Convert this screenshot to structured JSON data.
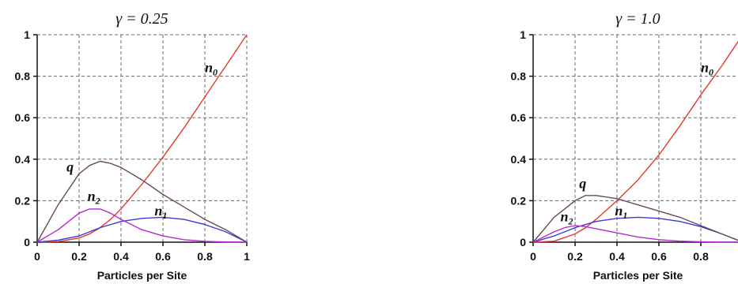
{
  "chart_data": [
    {
      "type": "line",
      "title": "γ = 0.25",
      "xlabel": "Particles per Site",
      "ylabel": "",
      "xlim": [
        0,
        1
      ],
      "ylim": [
        0,
        1
      ],
      "x_ticks": [
        "0",
        "0.2",
        "0.4",
        "0.6",
        "0.8",
        "1"
      ],
      "y_ticks": [
        "0",
        "0.2",
        "0.4",
        "0.6",
        "0.8",
        "1"
      ],
      "grid": true,
      "series": [
        {
          "name": "n0",
          "color": "#e23b2e",
          "x": [
            0,
            0.1,
            0.2,
            0.25,
            0.3,
            0.35,
            0.4,
            0.5,
            0.6,
            0.7,
            0.8,
            0.9,
            1.0
          ],
          "y": [
            0,
            0.003,
            0.02,
            0.04,
            0.07,
            0.11,
            0.16,
            0.28,
            0.41,
            0.55,
            0.7,
            0.85,
            1.0
          ]
        },
        {
          "name": "n1",
          "color": "#3a3ad8",
          "x": [
            0,
            0.1,
            0.2,
            0.3,
            0.4,
            0.5,
            0.6,
            0.7,
            0.8,
            0.9,
            1.0
          ],
          "y": [
            0,
            0.01,
            0.03,
            0.07,
            0.1,
            0.115,
            0.12,
            0.11,
            0.085,
            0.05,
            0
          ]
        },
        {
          "name": "n2",
          "color": "#b52ad0",
          "x": [
            0,
            0.1,
            0.2,
            0.25,
            0.3,
            0.35,
            0.4,
            0.5,
            0.6,
            0.7,
            0.8,
            0.9,
            1.0
          ],
          "y": [
            0,
            0.06,
            0.14,
            0.16,
            0.16,
            0.14,
            0.11,
            0.06,
            0.03,
            0.012,
            0.004,
            0.001,
            0
          ]
        },
        {
          "name": "q",
          "color": "#6a4a5a",
          "x": [
            0,
            0.1,
            0.2,
            0.25,
            0.3,
            0.35,
            0.4,
            0.5,
            0.6,
            0.7,
            0.8,
            0.9,
            1.0
          ],
          "y": [
            0,
            0.18,
            0.33,
            0.37,
            0.39,
            0.38,
            0.36,
            0.3,
            0.23,
            0.17,
            0.11,
            0.06,
            0
          ]
        }
      ],
      "series_labels": [
        {
          "text": "n0",
          "x": 0.8,
          "y": 0.82
        },
        {
          "text": "q",
          "x": 0.14,
          "y": 0.34
        },
        {
          "text": "n2",
          "x": 0.24,
          "y": 0.2
        },
        {
          "text": "n1",
          "x": 0.56,
          "y": 0.13
        }
      ]
    },
    {
      "type": "line",
      "title": "γ = 1.0",
      "xlabel": "Particles per Site",
      "ylabel": "",
      "xlim": [
        0,
        1
      ],
      "ylim": [
        0,
        1
      ],
      "x_ticks": [
        "0",
        "0.2",
        "0.4",
        "0.6",
        "0.8"
      ],
      "y_ticks": [
        "0",
        "0.2",
        "0.4",
        "0.6",
        "0.8",
        "1"
      ],
      "grid": true,
      "series": [
        {
          "name": "n0",
          "color": "#e23b2e",
          "x": [
            0,
            0.1,
            0.2,
            0.25,
            0.3,
            0.4,
            0.5,
            0.6,
            0.7,
            0.8,
            0.9,
            1.0
          ],
          "y": [
            0,
            0.005,
            0.04,
            0.07,
            0.11,
            0.2,
            0.3,
            0.42,
            0.56,
            0.71,
            0.85,
            1.0
          ]
        },
        {
          "name": "n1",
          "color": "#3a3ad8",
          "x": [
            0,
            0.1,
            0.2,
            0.3,
            0.4,
            0.5,
            0.6,
            0.7,
            0.8,
            0.9,
            1.0
          ],
          "y": [
            0,
            0.03,
            0.07,
            0.1,
            0.115,
            0.12,
            0.115,
            0.1,
            0.075,
            0.04,
            0
          ]
        },
        {
          "name": "n2",
          "color": "#b52ad0",
          "x": [
            0,
            0.1,
            0.15,
            0.2,
            0.25,
            0.3,
            0.4,
            0.5,
            0.6,
            0.7,
            0.8,
            0.9,
            1.0
          ],
          "y": [
            0,
            0.05,
            0.07,
            0.08,
            0.075,
            0.065,
            0.045,
            0.025,
            0.012,
            0.005,
            0.002,
            0.0005,
            0
          ]
        },
        {
          "name": "q",
          "color": "#6a4a5a",
          "x": [
            0,
            0.1,
            0.2,
            0.25,
            0.3,
            0.4,
            0.5,
            0.6,
            0.7,
            0.8,
            0.9,
            1.0
          ],
          "y": [
            0,
            0.12,
            0.2,
            0.225,
            0.225,
            0.21,
            0.18,
            0.15,
            0.12,
            0.08,
            0.04,
            0
          ]
        }
      ],
      "series_labels": [
        {
          "text": "n0",
          "x": 0.8,
          "y": 0.82
        },
        {
          "text": "q",
          "x": 0.22,
          "y": 0.26
        },
        {
          "text": "n2",
          "x": 0.13,
          "y": 0.1
        },
        {
          "text": "n1",
          "x": 0.39,
          "y": 0.13
        }
      ]
    }
  ]
}
